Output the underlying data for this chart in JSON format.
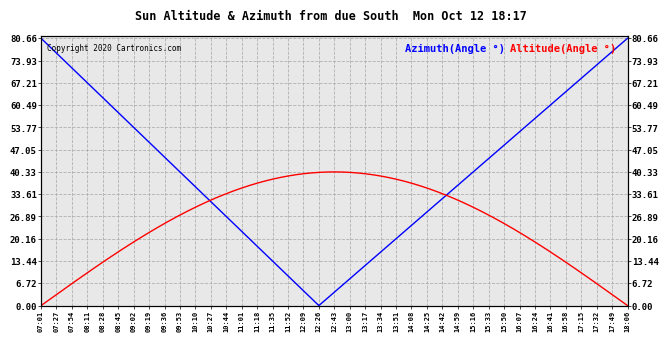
{
  "title": "Sun Altitude & Azimuth from due South  Mon Oct 12 18:17",
  "copyright": "Copyright 2020 Cartronics.com",
  "legend_azimuth": "Azimuth(Angle °)",
  "legend_altitude": "Altitude(Angle °)",
  "azimuth_color": "blue",
  "altitude_color": "red",
  "yticks": [
    0.0,
    6.72,
    13.44,
    20.16,
    26.89,
    33.61,
    40.33,
    47.05,
    53.77,
    60.49,
    67.21,
    73.93,
    80.66
  ],
  "ymax": 80.66,
  "ymin": 0.0,
  "peak_altitude": 40.33,
  "noon_idx": 18,
  "background_color": "#e8e8e8",
  "grid_color": "#aaaaaa",
  "xtick_labels": [
    "07:01",
    "07:27",
    "07:54",
    "08:11",
    "08:28",
    "08:45",
    "09:02",
    "09:19",
    "09:36",
    "09:53",
    "10:10",
    "10:27",
    "10:44",
    "11:01",
    "11:18",
    "11:35",
    "11:52",
    "12:09",
    "12:26",
    "12:43",
    "13:00",
    "13:17",
    "13:34",
    "13:51",
    "14:08",
    "14:25",
    "14:42",
    "14:59",
    "15:16",
    "15:33",
    "15:50",
    "16:07",
    "16:24",
    "16:41",
    "16:58",
    "17:15",
    "17:32",
    "17:49",
    "18:06"
  ]
}
